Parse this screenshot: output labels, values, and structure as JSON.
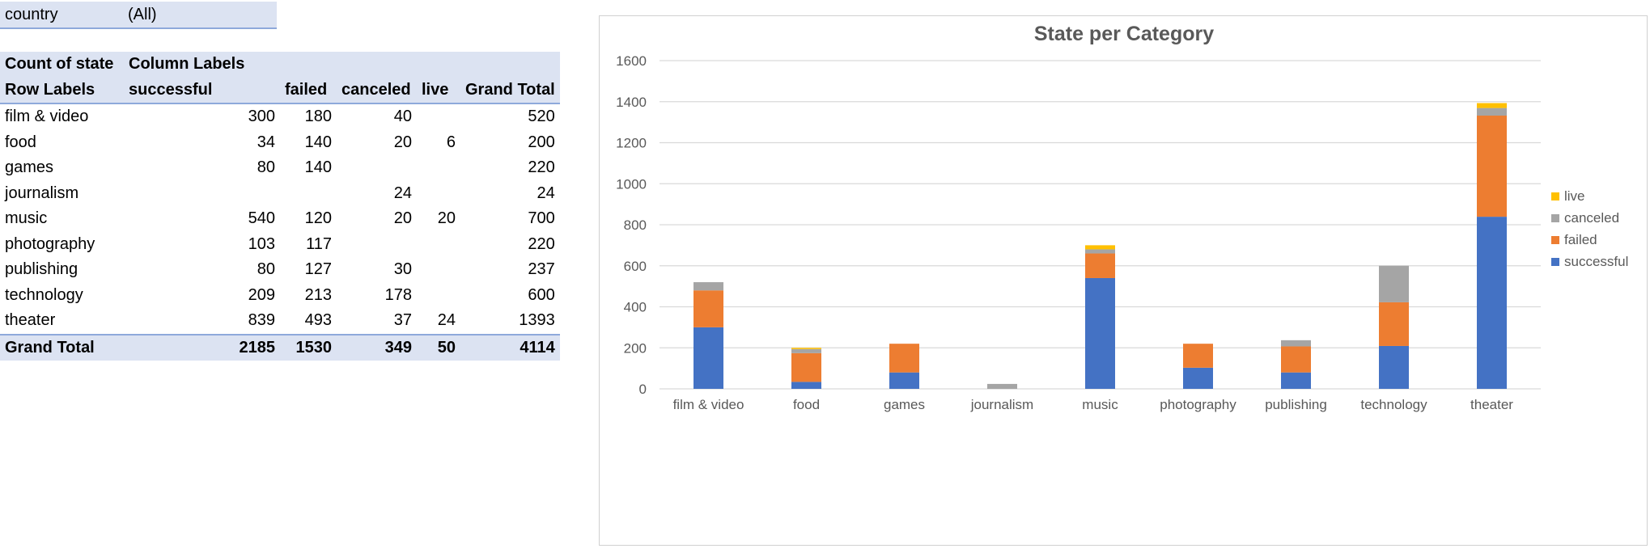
{
  "filter": {
    "label": "country",
    "value": "(All)"
  },
  "pivot": {
    "corner": "Count of state",
    "column_labels": "Column Labels",
    "row_labels": "Row Labels",
    "columns": [
      "successful",
      "failed",
      "canceled",
      "live",
      "Grand Total"
    ],
    "rows": [
      {
        "label": "film & video",
        "cells": [
          "300",
          "180",
          "40",
          "",
          "520"
        ]
      },
      {
        "label": "food",
        "cells": [
          "34",
          "140",
          "20",
          "6",
          "200"
        ]
      },
      {
        "label": "games",
        "cells": [
          "80",
          "140",
          "",
          "",
          "220"
        ]
      },
      {
        "label": "journalism",
        "cells": [
          "",
          "",
          "24",
          "",
          "24"
        ]
      },
      {
        "label": "music",
        "cells": [
          "540",
          "120",
          "20",
          "20",
          "700"
        ]
      },
      {
        "label": "photography",
        "cells": [
          "103",
          "117",
          "",
          "",
          "220"
        ]
      },
      {
        "label": "publishing",
        "cells": [
          "80",
          "127",
          "30",
          "",
          "237"
        ]
      },
      {
        "label": "technology",
        "cells": [
          "209",
          "213",
          "178",
          "",
          "600"
        ]
      },
      {
        "label": "theater",
        "cells": [
          "839",
          "493",
          "37",
          "24",
          "1393"
        ]
      }
    ],
    "total": {
      "label": "Grand Total",
      "cells": [
        "2185",
        "1530",
        "349",
        "50",
        "4114"
      ]
    }
  },
  "chart_data": {
    "type": "bar",
    "stacked": true,
    "title": "State per Category",
    "xlabel": "",
    "ylabel": "",
    "ylim": [
      0,
      1600
    ],
    "yticks": [
      0,
      200,
      400,
      600,
      800,
      1000,
      1200,
      1400,
      1600
    ],
    "grid": true,
    "legend_position": "right",
    "categories": [
      "film & video",
      "food",
      "games",
      "journalism",
      "music",
      "photography",
      "publishing",
      "technology",
      "theater"
    ],
    "series": [
      {
        "name": "successful",
        "color": "#4472c4",
        "values": [
          300,
          34,
          80,
          0,
          540,
          103,
          80,
          209,
          839
        ]
      },
      {
        "name": "failed",
        "color": "#ed7d31",
        "values": [
          180,
          140,
          140,
          0,
          120,
          117,
          127,
          213,
          493
        ]
      },
      {
        "name": "canceled",
        "color": "#a5a5a5",
        "values": [
          40,
          20,
          0,
          24,
          20,
          0,
          30,
          178,
          37
        ]
      },
      {
        "name": "live",
        "color": "#ffc000",
        "values": [
          0,
          6,
          0,
          0,
          20,
          0,
          0,
          0,
          24
        ]
      }
    ]
  }
}
